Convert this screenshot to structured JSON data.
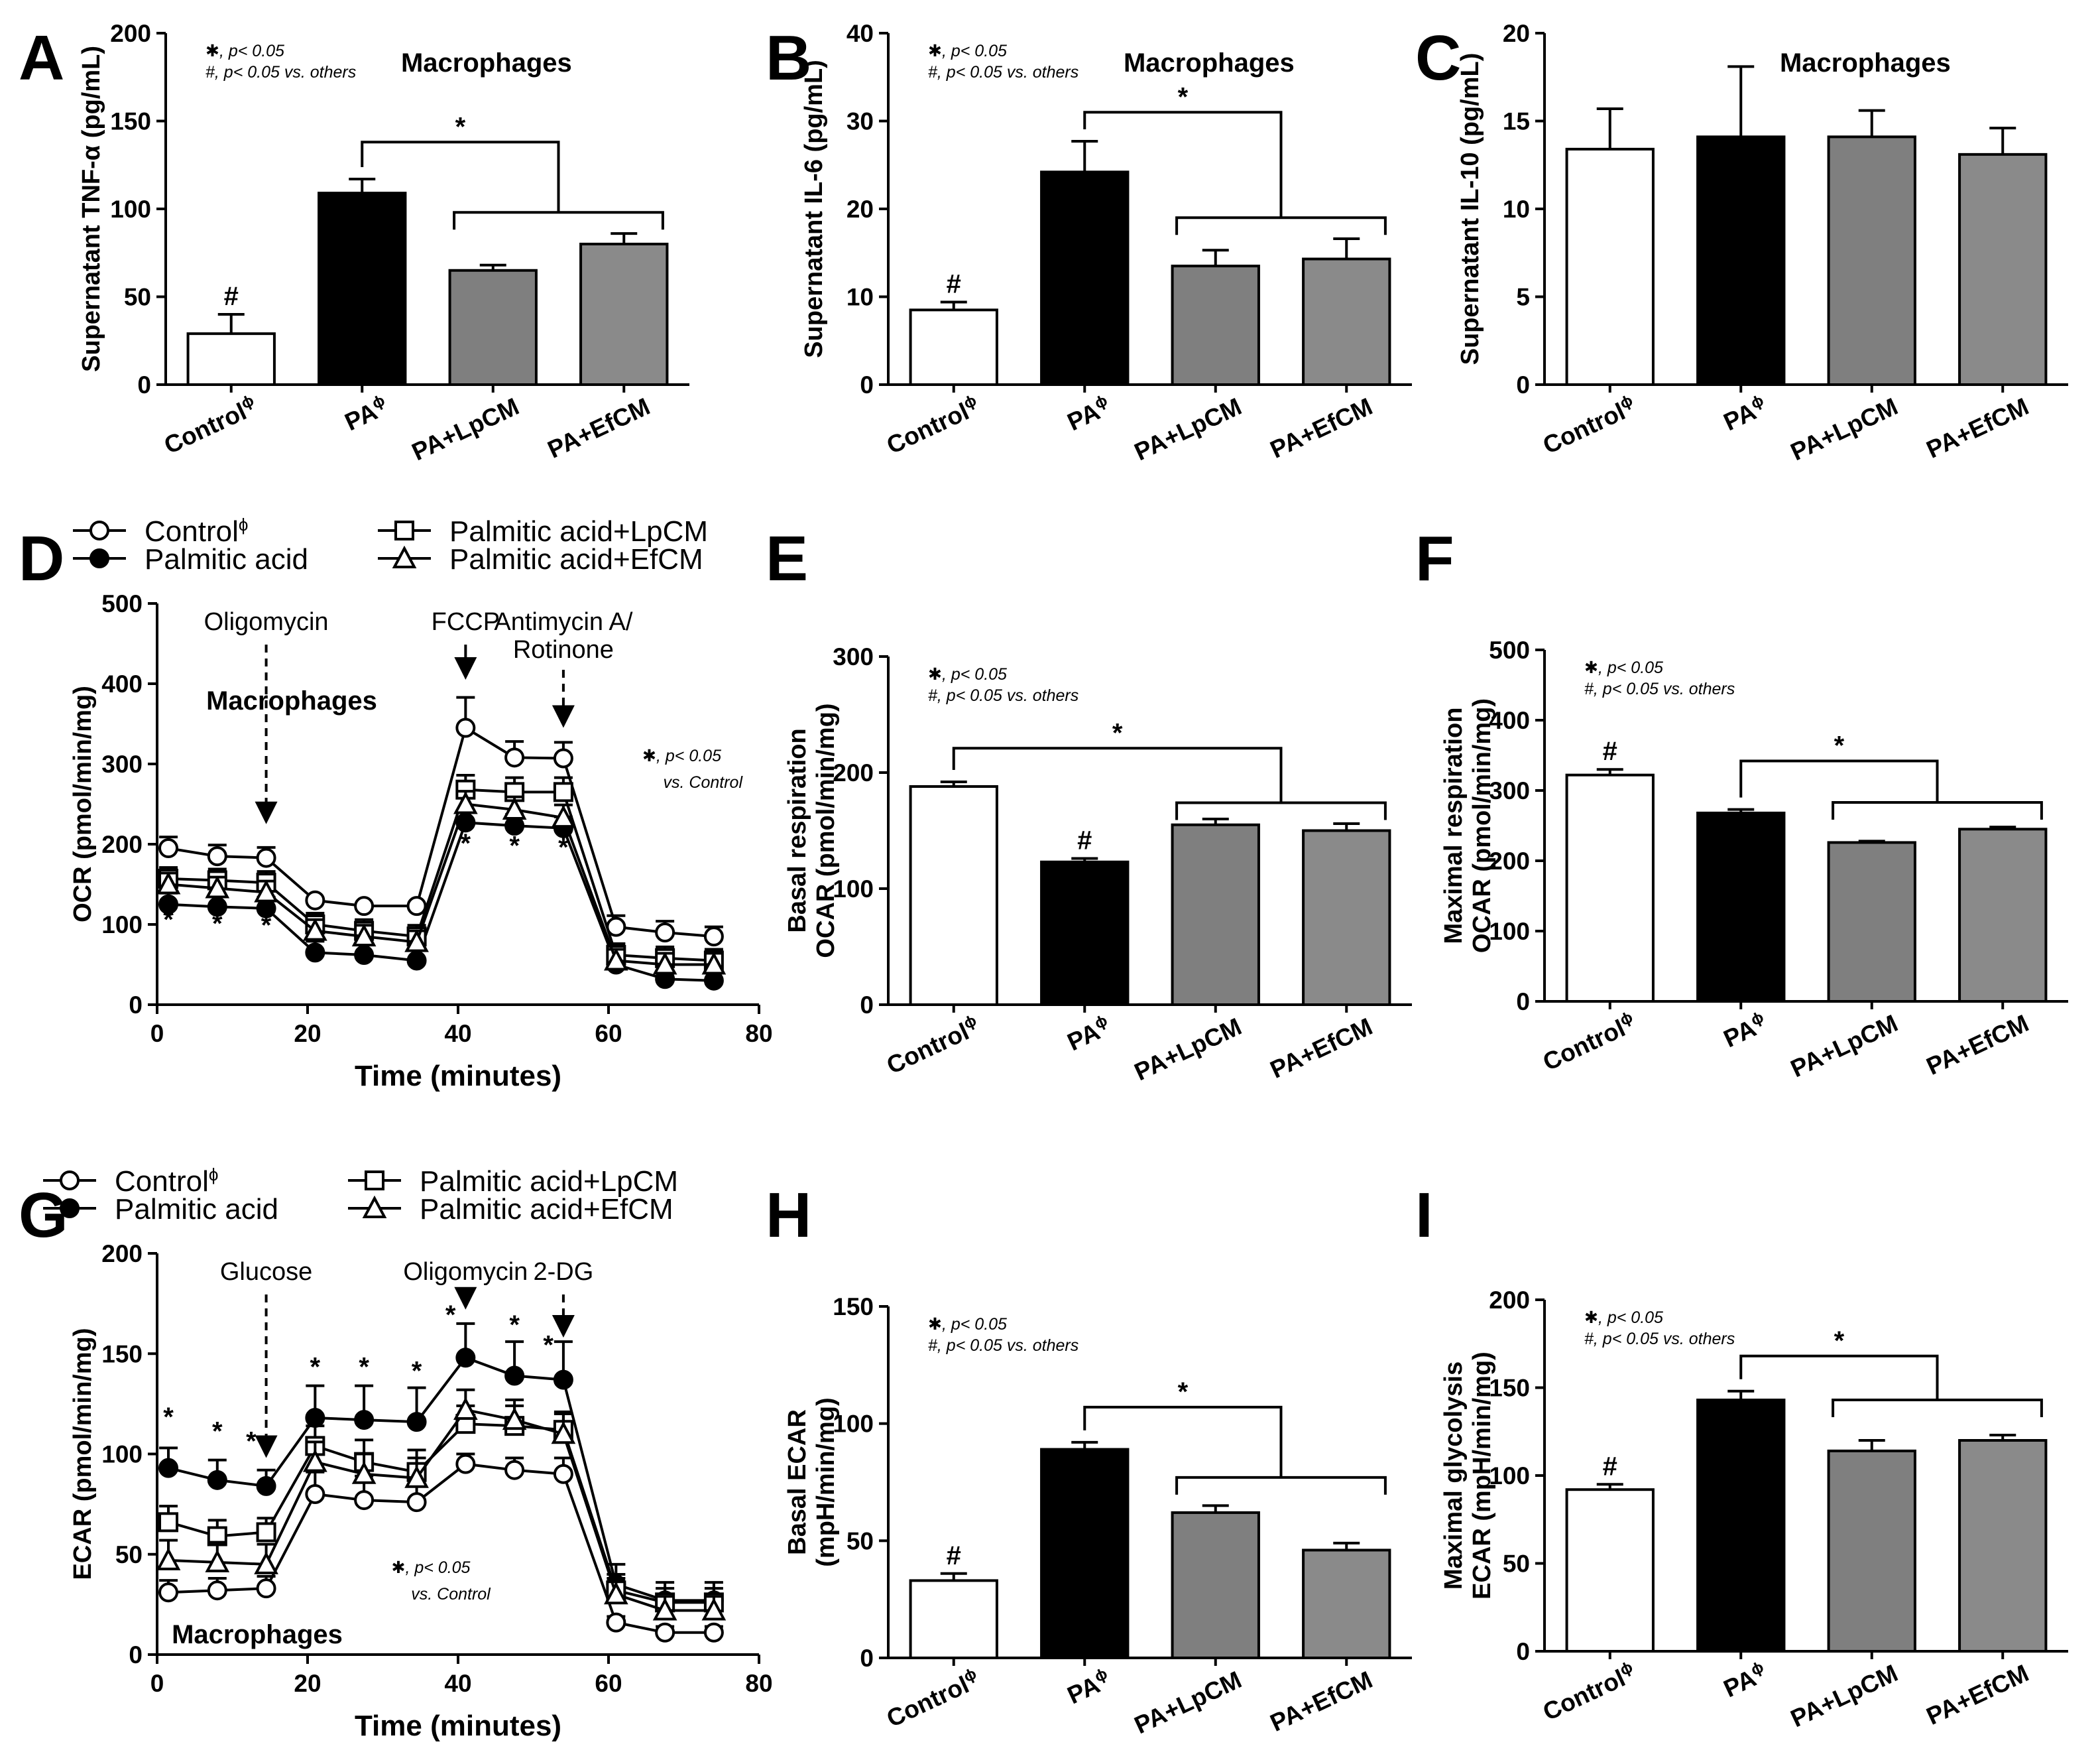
{
  "colors": {
    "control": "#ffffff",
    "pa": "#000000",
    "lpcm": "#7f7f7f",
    "efcm": "#8a8a8a",
    "ink": "#000000"
  },
  "chart_data": [
    {
      "id": "A",
      "type": "bar",
      "letter": "A",
      "title": "Macrophages",
      "ylabel": "Supernatant TNF-α (pg/mL)",
      "ylim": [
        0,
        200
      ],
      "yticks": [
        0,
        50,
        100,
        150,
        200
      ],
      "categories": [
        "Control",
        "PA",
        "PA+LpCM",
        "PA+EfCM"
      ],
      "cat_sup": [
        "ϕ",
        "ϕ",
        "",
        ""
      ],
      "values": [
        29,
        109,
        65,
        80
      ],
      "errors": [
        11,
        8,
        3,
        6
      ],
      "fills": [
        "control",
        "pa",
        "lpcm",
        "efcm"
      ],
      "notes": [
        "✱, p< 0.05",
        "#, p< 0.05 vs. others"
      ],
      "marks": [
        {
          "bar": 0,
          "text": "#"
        }
      ],
      "bracket": {
        "from": [
          1
        ],
        "to": [
          2,
          3
        ],
        "y_top": 138,
        "y_low": 98,
        "label": "*"
      }
    },
    {
      "id": "B",
      "type": "bar",
      "letter": "B",
      "title": "Macrophages",
      "ylabel": "Supernatant IL-6 (pg/mL)",
      "ylim": [
        0,
        40
      ],
      "yticks": [
        0,
        10,
        20,
        30,
        40
      ],
      "categories": [
        "Control",
        "PA",
        "PA+LpCM",
        "PA+EfCM"
      ],
      "cat_sup": [
        "ϕ",
        "ϕ",
        "",
        ""
      ],
      "values": [
        8.5,
        24.2,
        13.5,
        14.3
      ],
      "errors": [
        0.9,
        3.5,
        1.8,
        2.3
      ],
      "fills": [
        "control",
        "pa",
        "lpcm",
        "efcm"
      ],
      "notes": [
        "✱, p< 0.05",
        "#, p< 0.05 vs. others"
      ],
      "marks": [
        {
          "bar": 0,
          "text": "#"
        }
      ],
      "bracket": {
        "from": [
          1
        ],
        "to": [
          2,
          3
        ],
        "y_top": 31,
        "y_low": 19,
        "label": "*"
      }
    },
    {
      "id": "C",
      "type": "bar",
      "letter": "C",
      "title": "Macrophages",
      "ylabel": "Supernatant IL-10 (pg/mL)",
      "ylim": [
        0,
        20
      ],
      "yticks": [
        0,
        5,
        10,
        15,
        20
      ],
      "categories": [
        "Control",
        "PA",
        "PA+LpCM",
        "PA+EfCM"
      ],
      "cat_sup": [
        "ϕ",
        "ϕ",
        "",
        ""
      ],
      "values": [
        13.4,
        14.1,
        14.1,
        13.1
      ],
      "errors": [
        2.3,
        4.0,
        1.5,
        1.5
      ],
      "fills": [
        "control",
        "pa",
        "lpcm",
        "efcm"
      ],
      "notes": [],
      "marks": [],
      "bracket": null
    },
    {
      "id": "D",
      "type": "line",
      "letter": "D",
      "title": "Macrophages",
      "xlabel": "Time (minutes)",
      "ylabel": "OCR (pmol/min/mg)",
      "xlim": [
        0,
        80
      ],
      "xticks": [
        0,
        20,
        40,
        60,
        80
      ],
      "ylim": [
        0,
        500
      ],
      "yticks": [
        0,
        100,
        200,
        300,
        400,
        500
      ],
      "x": [
        1.5,
        8,
        14.5,
        21,
        27.5,
        34.5,
        41,
        47.5,
        54,
        61,
        67.5,
        74
      ],
      "series": [
        {
          "name": "Control",
          "sup": "ϕ",
          "marker": "circle-open",
          "values": [
            195,
            185,
            183,
            130,
            123,
            123,
            345,
            308,
            307,
            97,
            90,
            85
          ],
          "errors": [
            14,
            14,
            13,
            0,
            0,
            0,
            38,
            20,
            20,
            14,
            14,
            12
          ]
        },
        {
          "name": "Palmitic acid",
          "sup": "",
          "marker": "circle-filled",
          "values": [
            125,
            122,
            120,
            65,
            62,
            55,
            227,
            223,
            220,
            50,
            32,
            30
          ],
          "errors": [
            14,
            14,
            14,
            14,
            14,
            14,
            14,
            14,
            14,
            14,
            10,
            10
          ]
        },
        {
          "name": "Palmitic acid+LpCM",
          "sup": "",
          "marker": "square-open",
          "values": [
            157,
            155,
            152,
            100,
            92,
            85,
            268,
            265,
            265,
            62,
            58,
            55
          ],
          "errors": [
            14,
            14,
            14,
            14,
            14,
            14,
            18,
            18,
            18,
            14,
            14,
            14
          ]
        },
        {
          "name": "Palmitic acid+EfCM",
          "sup": "",
          "marker": "triangle-open",
          "values": [
            150,
            145,
            140,
            92,
            85,
            78,
            250,
            243,
            233,
            55,
            50,
            50
          ],
          "errors": [
            14,
            14,
            14,
            14,
            14,
            14,
            16,
            16,
            16,
            14,
            14,
            14
          ]
        }
      ],
      "events": [
        {
          "label": "Oligomycin",
          "x": 14.5,
          "dashed": true
        },
        {
          "label": "FCCP",
          "x": 41,
          "dashed": false
        },
        {
          "label": "Antimycin A/",
          "label2": "Rotinone",
          "x": 54,
          "dashed": true
        }
      ],
      "stars": [
        {
          "x": 1.5,
          "y": 95
        },
        {
          "x": 8,
          "y": 90
        },
        {
          "x": 14.5,
          "y": 88
        },
        {
          "x": 41,
          "y": 190
        },
        {
          "x": 47.5,
          "y": 187
        },
        {
          "x": 54,
          "y": 185
        }
      ],
      "note": [
        "✱, p< 0.05",
        "vs. Control"
      ]
    },
    {
      "id": "E",
      "type": "bar",
      "letter": "E",
      "title": "",
      "ylabel": "Basal respiration",
      "ylabel2": "OCAR (pmol/min/mg)",
      "ylim": [
        0,
        300
      ],
      "yticks": [
        0,
        100,
        200,
        300
      ],
      "categories": [
        "Control",
        "PA",
        "PA+LpCM",
        "PA+EfCM"
      ],
      "cat_sup": [
        "ϕ",
        "ϕ",
        "",
        ""
      ],
      "values": [
        188,
        123,
        155,
        150
      ],
      "errors": [
        4,
        3,
        5,
        6
      ],
      "fills": [
        "control",
        "pa",
        "lpcm",
        "efcm"
      ],
      "notes": [
        "✱, p< 0.05",
        "#, p< 0.05 vs. others"
      ],
      "marks": [
        {
          "bar": 1,
          "text": "#"
        }
      ],
      "bracket": {
        "from": [
          0
        ],
        "to": [
          2,
          3
        ],
        "y_top": 221,
        "y_low": 174,
        "label": "*"
      }
    },
    {
      "id": "F",
      "type": "bar",
      "letter": "F",
      "title": "",
      "ylabel": "Maximal respiration",
      "ylabel2": "OCAR (pmol/min/mg)",
      "ylim": [
        0,
        500
      ],
      "yticks": [
        0,
        100,
        200,
        300,
        400,
        500
      ],
      "categories": [
        "Control",
        "PA",
        "PA+LpCM",
        "PA+EfCM"
      ],
      "cat_sup": [
        "ϕ",
        "ϕ",
        "",
        ""
      ],
      "values": [
        322,
        268,
        226,
        245
      ],
      "errors": [
        8,
        5,
        2,
        3
      ],
      "fills": [
        "control",
        "pa",
        "lpcm",
        "efcm"
      ],
      "notes": [
        "✱, p< 0.05",
        "#, p< 0.05 vs. others"
      ],
      "marks": [
        {
          "bar": 0,
          "text": "#"
        }
      ],
      "bracket": {
        "from": [
          1
        ],
        "to": [
          2,
          3
        ],
        "y_top": 342,
        "y_low": 283,
        "label": "*"
      }
    },
    {
      "id": "G",
      "type": "line",
      "letter": "G",
      "title": "Macrophages",
      "xlabel": "Time (minutes)",
      "ylabel": "ECAR (pmol/min/mg)",
      "xlim": [
        0,
        80
      ],
      "xticks": [
        0,
        20,
        40,
        60,
        80
      ],
      "ylim": [
        0,
        200
      ],
      "yticks": [
        0,
        50,
        100,
        150,
        200
      ],
      "x": [
        1.5,
        8,
        14.5,
        21,
        27.5,
        34.5,
        41,
        47.5,
        54,
        61,
        67.5,
        74
      ],
      "series": [
        {
          "name": "Control",
          "sup": "ϕ",
          "marker": "circle-open",
          "values": [
            31,
            32,
            33,
            80,
            77,
            76,
            95,
            92,
            90,
            16,
            11,
            11
          ],
          "errors": [
            6,
            6,
            6,
            11,
            12,
            12,
            5,
            6,
            8,
            3,
            3,
            3
          ]
        },
        {
          "name": "Palmitic acid",
          "sup": "",
          "marker": "circle-filled",
          "values": [
            93,
            87,
            84,
            118,
            117,
            116,
            148,
            139,
            137,
            35,
            27,
            27
          ],
          "errors": [
            10,
            10,
            8,
            16,
            17,
            17,
            17,
            17,
            19,
            10,
            9,
            9
          ]
        },
        {
          "name": "Palmitic acid+LpCM",
          "sup": "",
          "marker": "square-open",
          "values": [
            66,
            59,
            61,
            104,
            96,
            91,
            115,
            114,
            112,
            32,
            26,
            26
          ],
          "errors": [
            8,
            8,
            7,
            10,
            11,
            11,
            9,
            10,
            9,
            8,
            7,
            7
          ]
        },
        {
          "name": "Palmitic acid+EfCM",
          "sup": "",
          "marker": "triangle-open",
          "values": [
            47,
            46,
            45,
            96,
            90,
            88,
            122,
            117,
            110,
            30,
            22,
            22
          ],
          "errors": [
            10,
            10,
            10,
            10,
            10,
            10,
            10,
            10,
            10,
            8,
            7,
            7
          ]
        }
      ],
      "events": [
        {
          "label": "Glucose",
          "x": 14.5,
          "dashed": true
        },
        {
          "label": "Oligomycin",
          "x": 41,
          "dashed": false
        },
        {
          "label": "2-DG",
          "x": 54,
          "dashed": true
        }
      ],
      "stars": [
        {
          "x": 1.5,
          "y": 114
        },
        {
          "x": 8,
          "y": 107
        },
        {
          "x": 12.5,
          "y": 102
        },
        {
          "x": 21,
          "y": 139
        },
        {
          "x": 27.5,
          "y": 139
        },
        {
          "x": 34.5,
          "y": 137
        },
        {
          "x": 39,
          "y": 165
        },
        {
          "x": 47.5,
          "y": 160
        },
        {
          "x": 52,
          "y": 150
        }
      ],
      "note": [
        "✱, p< 0.05",
        "vs. Control"
      ]
    },
    {
      "id": "H",
      "type": "bar",
      "letter": "H",
      "title": "",
      "ylabel": "Basal ECAR",
      "ylabel2": "(mpH/min/mg)",
      "ylim": [
        0,
        150
      ],
      "yticks": [
        0,
        50,
        100,
        150
      ],
      "categories": [
        "Control",
        "PA",
        "PA+LpCM",
        "PA+EfCM"
      ],
      "cat_sup": [
        "ϕ",
        "ϕ",
        "",
        ""
      ],
      "values": [
        33,
        89,
        62,
        46
      ],
      "errors": [
        3,
        3,
        3,
        3
      ],
      "fills": [
        "control",
        "pa",
        "lpcm",
        "efcm"
      ],
      "notes": [
        "✱, p< 0.05",
        "#, p< 0.05 vs. others"
      ],
      "marks": [
        {
          "bar": 0,
          "text": "#"
        }
      ],
      "bracket": {
        "from": [
          1
        ],
        "to": [
          2,
          3
        ],
        "y_top": 107,
        "y_low": 77,
        "label": "*"
      }
    },
    {
      "id": "I",
      "type": "bar",
      "letter": "I",
      "title": "",
      "ylabel": "Maximal glycolysis",
      "ylabel2": "ECAR (mpH/min/mg)",
      "ylim": [
        0,
        200
      ],
      "yticks": [
        0,
        50,
        100,
        150,
        200
      ],
      "categories": [
        "Control",
        "PA",
        "PA+LpCM",
        "PA+EfCM"
      ],
      "cat_sup": [
        "ϕ",
        "ϕ",
        "",
        ""
      ],
      "values": [
        92,
        143,
        114,
        120
      ],
      "errors": [
        3,
        5,
        6,
        3
      ],
      "fills": [
        "control",
        "pa",
        "lpcm",
        "efcm"
      ],
      "notes": [
        "✱, p< 0.05",
        "#, p< 0.05 vs. others"
      ],
      "marks": [
        {
          "bar": 0,
          "text": "#"
        }
      ],
      "bracket": {
        "from": [
          1
        ],
        "to": [
          2,
          3
        ],
        "y_top": 168,
        "y_low": 143,
        "label": "*"
      }
    }
  ]
}
